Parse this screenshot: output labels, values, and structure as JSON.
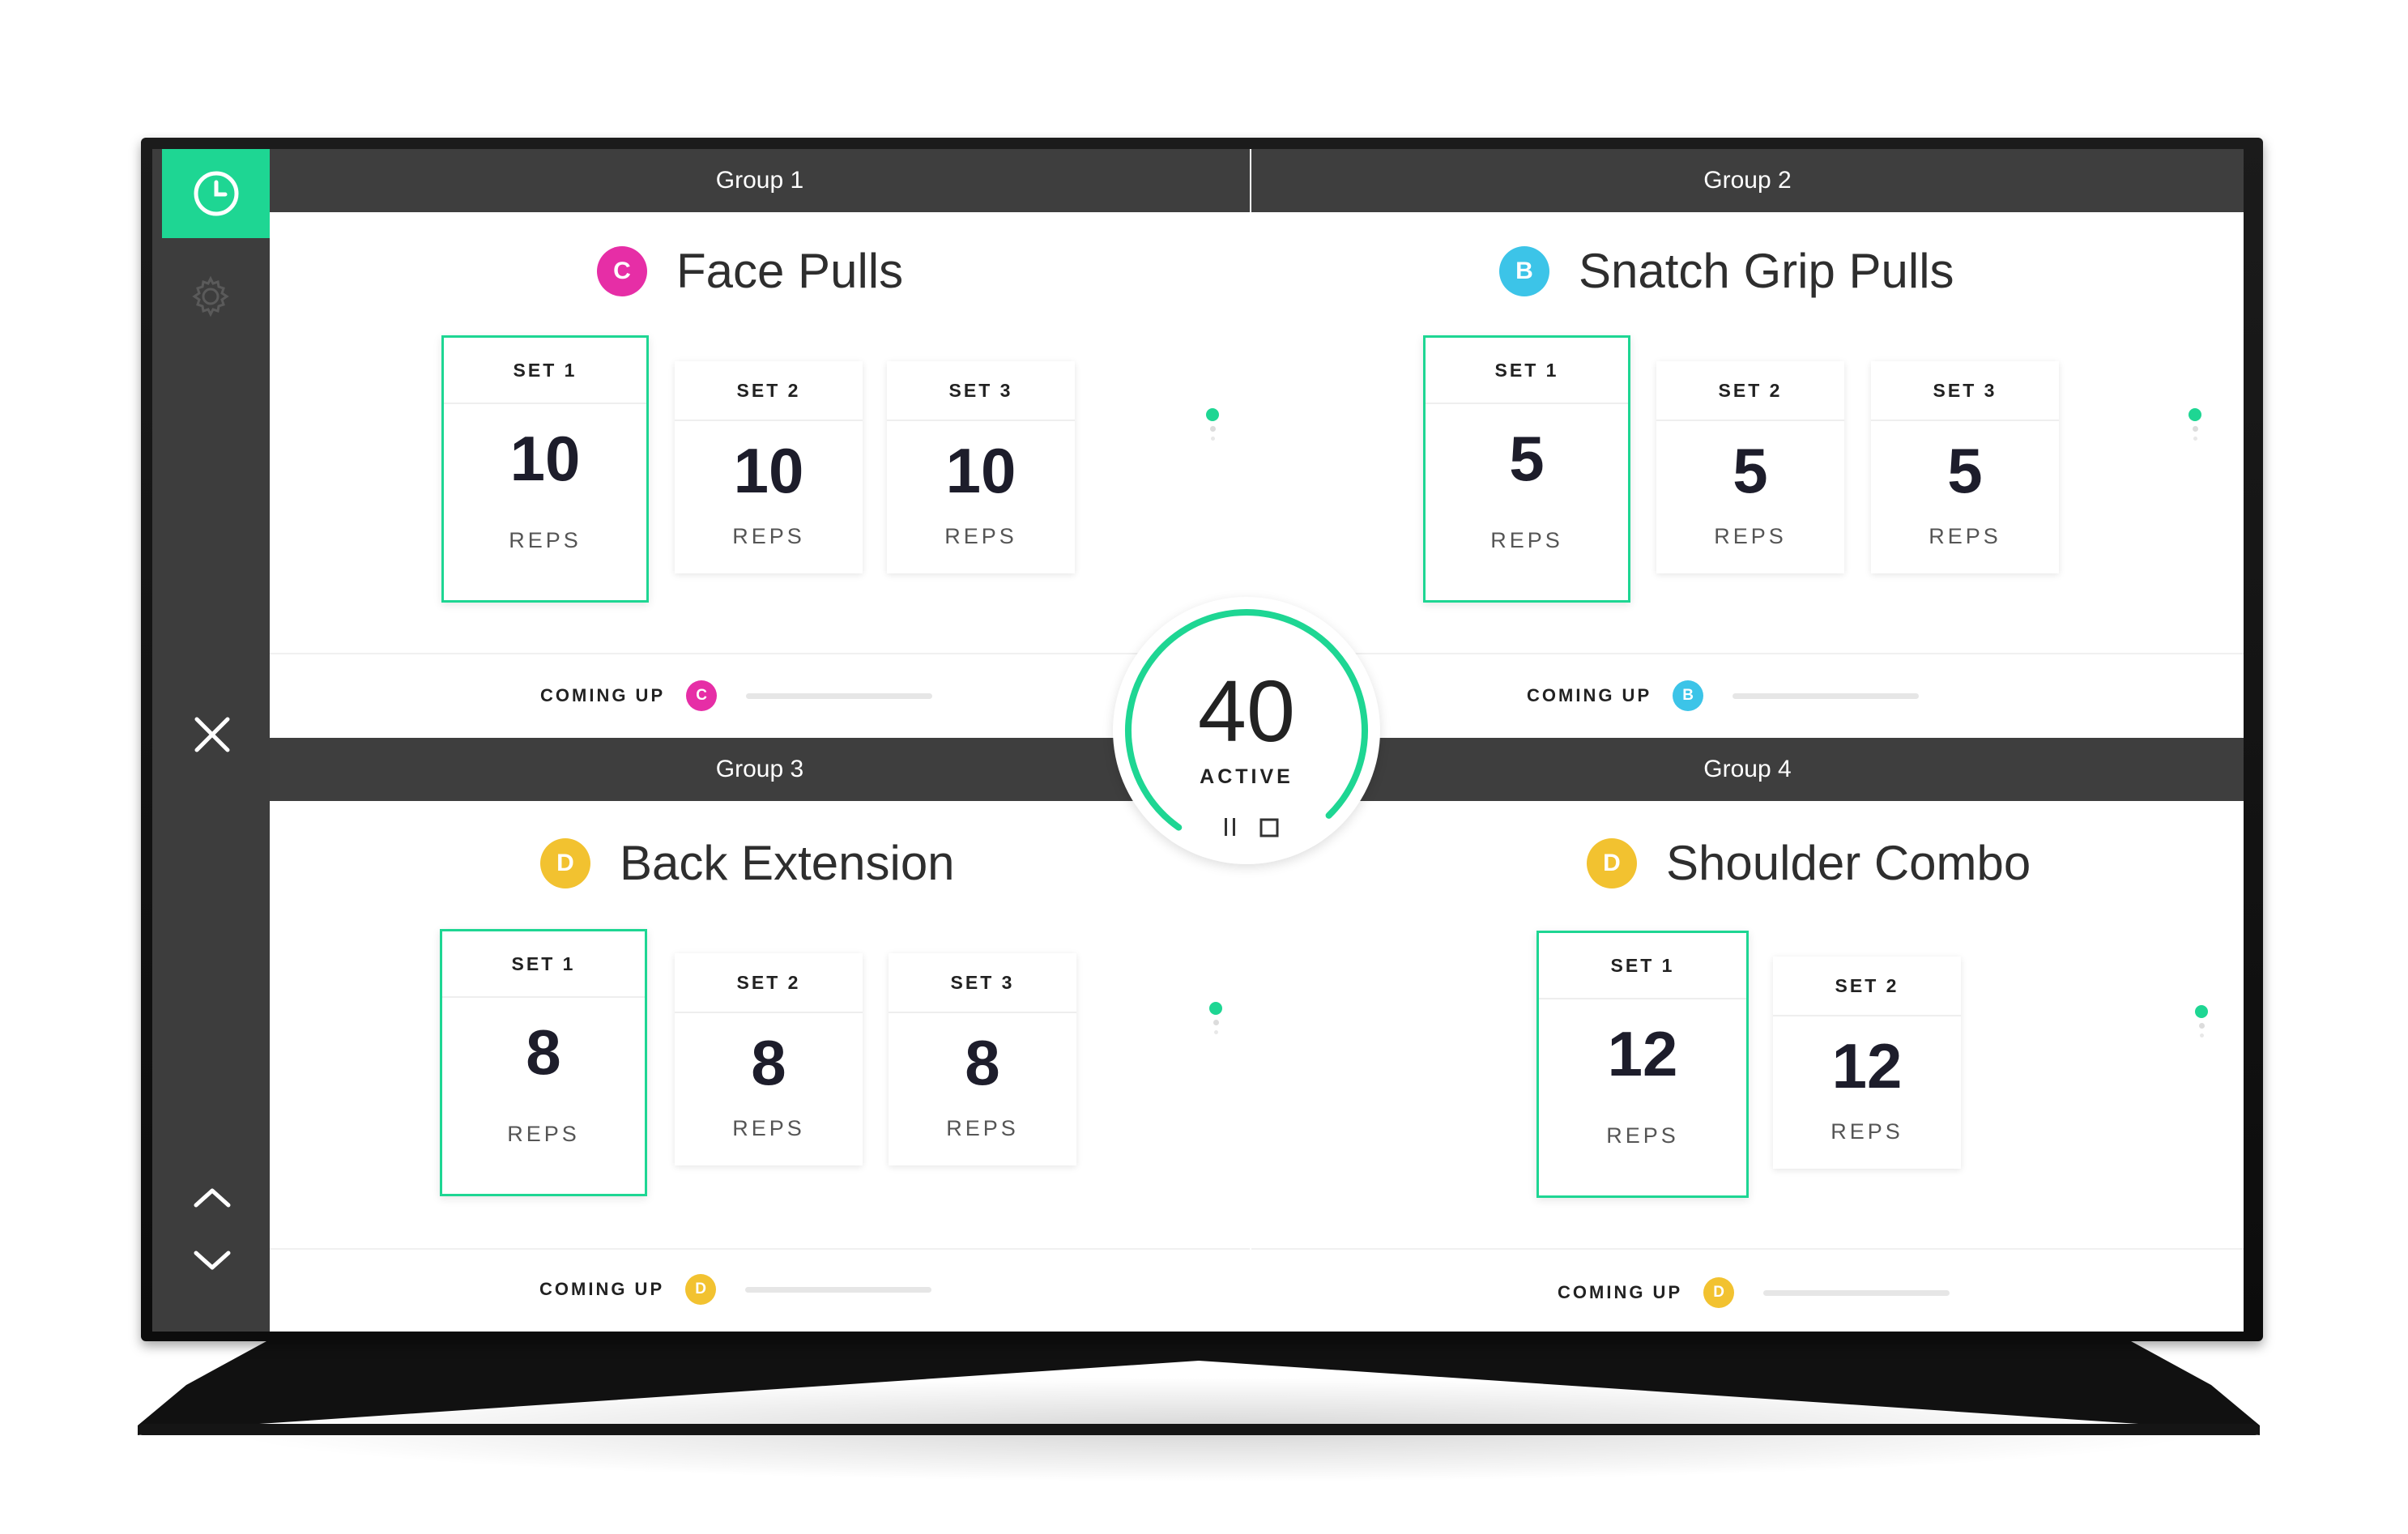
{
  "accent_color": "#1ed693",
  "sidebar": {
    "items": [
      {
        "name": "clock-icon",
        "active": true
      },
      {
        "name": "gear-icon",
        "active": false
      },
      {
        "name": "close-icon",
        "active": false
      },
      {
        "name": "chevron-up-icon",
        "active": false
      },
      {
        "name": "chevron-down-icon",
        "active": false
      }
    ]
  },
  "timer": {
    "value": "40",
    "label": "ACTIVE",
    "progress": 0.78,
    "controls": [
      "pause-icon",
      "stop-icon"
    ]
  },
  "groups": [
    {
      "header": "Group 1",
      "exercise": "Face Pulls",
      "badge": {
        "letter": "C",
        "color": "#e62ea6"
      },
      "sets": [
        {
          "label": "SET 1",
          "reps": "10",
          "unit": "REPS",
          "active": true
        },
        {
          "label": "SET 2",
          "reps": "10",
          "unit": "REPS",
          "active": false
        },
        {
          "label": "SET 3",
          "reps": "10",
          "unit": "REPS",
          "active": false
        }
      ],
      "coming_up": {
        "label": "COMING UP",
        "badge": "C",
        "color": "#e62ea6"
      }
    },
    {
      "header": "Group 2",
      "exercise": "Snatch Grip Pulls",
      "badge": {
        "letter": "B",
        "color": "#3cc4e8"
      },
      "sets": [
        {
          "label": "SET 1",
          "reps": "5",
          "unit": "REPS",
          "active": true
        },
        {
          "label": "SET 2",
          "reps": "5",
          "unit": "REPS",
          "active": false
        },
        {
          "label": "SET 3",
          "reps": "5",
          "unit": "REPS",
          "active": false
        }
      ],
      "coming_up": {
        "label": "COMING UP",
        "badge": "B",
        "color": "#3cc4e8"
      }
    },
    {
      "header": "Group 3",
      "exercise": "Back Extension",
      "badge": {
        "letter": "D",
        "color": "#f2c230"
      },
      "sets": [
        {
          "label": "SET 1",
          "reps": "8",
          "unit": "REPS",
          "active": true
        },
        {
          "label": "SET 2",
          "reps": "8",
          "unit": "REPS",
          "active": false
        },
        {
          "label": "SET 3",
          "reps": "8",
          "unit": "REPS",
          "active": false
        }
      ],
      "coming_up": {
        "label": "COMING UP",
        "badge": "D",
        "color": "#f2c230"
      }
    },
    {
      "header": "Group 4",
      "exercise": "Shoulder Combo",
      "badge": {
        "letter": "D",
        "color": "#f2c230"
      },
      "sets": [
        {
          "label": "SET 1",
          "reps": "12",
          "unit": "REPS",
          "active": true
        },
        {
          "label": "SET 2",
          "reps": "12",
          "unit": "REPS",
          "active": false
        }
      ],
      "coming_up": {
        "label": "COMING UP",
        "badge": "D",
        "color": "#f2c230"
      }
    }
  ]
}
